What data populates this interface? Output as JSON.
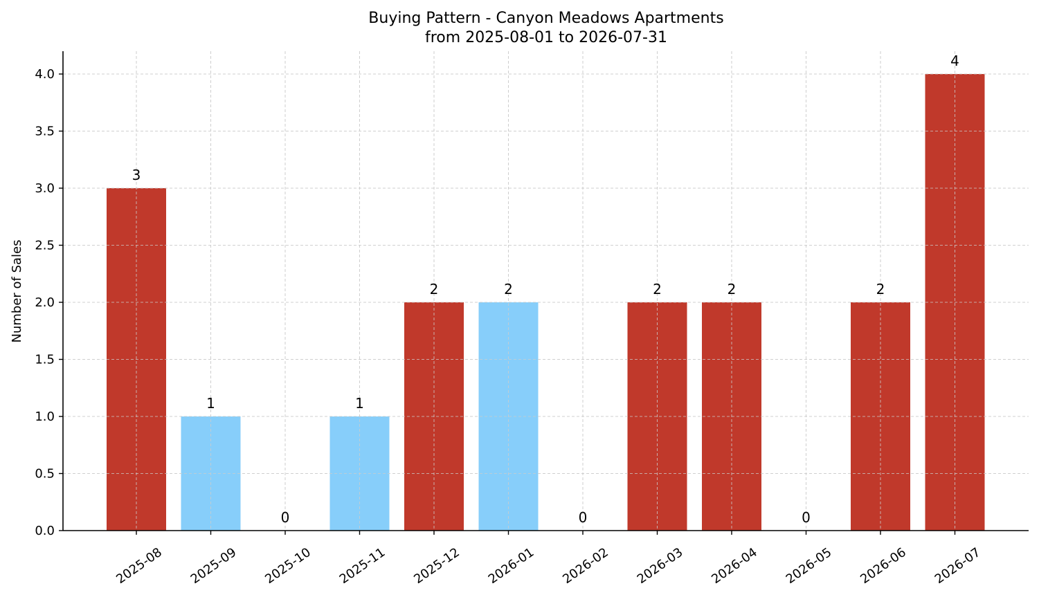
{
  "chart_data": {
    "type": "bar",
    "title": "Buying Pattern - Canyon Meadows Apartments",
    "subtitle": "from 2025-08-01 to 2026-07-31",
    "xlabel": "",
    "ylabel": "Number of Sales",
    "categories": [
      "2025-08",
      "2025-09",
      "2025-10",
      "2025-11",
      "2025-12",
      "2026-01",
      "2026-02",
      "2026-03",
      "2026-04",
      "2026-05",
      "2026-06",
      "2026-07"
    ],
    "values": [
      3,
      1,
      0,
      1,
      2,
      2,
      0,
      2,
      2,
      0,
      2,
      4
    ],
    "bar_colors": [
      "#c0392b",
      "#87cefa",
      "#c0392b",
      "#87cefa",
      "#c0392b",
      "#87cefa",
      "#c0392b",
      "#c0392b",
      "#c0392b",
      "#c0392b",
      "#c0392b",
      "#c0392b"
    ],
    "data_labels": [
      "3",
      "1",
      "0",
      "1",
      "2",
      "2",
      "0",
      "2",
      "2",
      "0",
      "2",
      "4"
    ],
    "yticks": [
      "0.0",
      "0.5",
      "1.0",
      "1.5",
      "2.0",
      "2.5",
      "3.0",
      "3.5",
      "4.0"
    ],
    "ylim": [
      0,
      4.2
    ],
    "grid": true,
    "colors": {
      "high": "#c0392b",
      "low": "#87cefa",
      "grid": "#cccccc"
    }
  }
}
